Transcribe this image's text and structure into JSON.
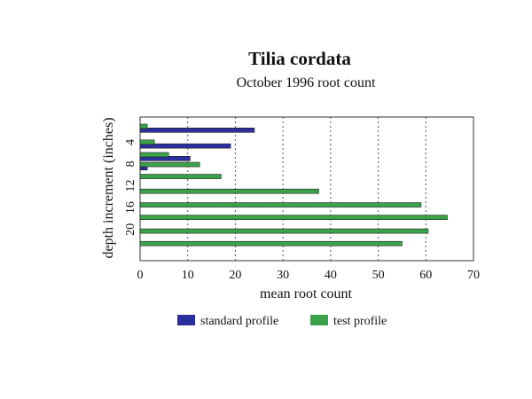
{
  "chart_data": {
    "type": "bar",
    "orientation": "horizontal",
    "title": "Tilia cordata",
    "subtitle": "October 1996 root count",
    "xlabel": "mean root count",
    "ylabel": "depth increment (inches)",
    "xlim": [
      0,
      70
    ],
    "xticks": [
      0,
      10,
      20,
      30,
      40,
      50,
      60,
      70
    ],
    "ylim": [
      1,
      21
    ],
    "yticks": [
      4,
      8,
      12,
      16,
      20
    ],
    "grid": "vertical dashed",
    "legend_position": "bottom",
    "colors": {
      "standard profile": "#2b2f9e",
      "test profile": "#3aa34a"
    },
    "series": [
      {
        "name": "standard profile",
        "points": [
          {
            "depth": 1.8,
            "value": 24
          },
          {
            "depth": 4.7,
            "value": 19
          },
          {
            "depth": 7.0,
            "value": 10.5
          },
          {
            "depth": 8.7,
            "value": 1.5
          }
        ]
      },
      {
        "name": "test profile",
        "points": [
          {
            "depth": 1.1,
            "value": 1.5
          },
          {
            "depth": 4.0,
            "value": 3
          },
          {
            "depth": 6.3,
            "value": 6
          },
          {
            "depth": 8.1,
            "value": 12.5
          },
          {
            "depth": 10.3,
            "value": 17
          },
          {
            "depth": 13.0,
            "value": 37.5
          },
          {
            "depth": 15.5,
            "value": 59
          },
          {
            "depth": 17.8,
            "value": 64.5
          },
          {
            "depth": 20.3,
            "value": 60.5
          },
          {
            "depth": 22.6,
            "value": 55
          }
        ]
      }
    ]
  }
}
